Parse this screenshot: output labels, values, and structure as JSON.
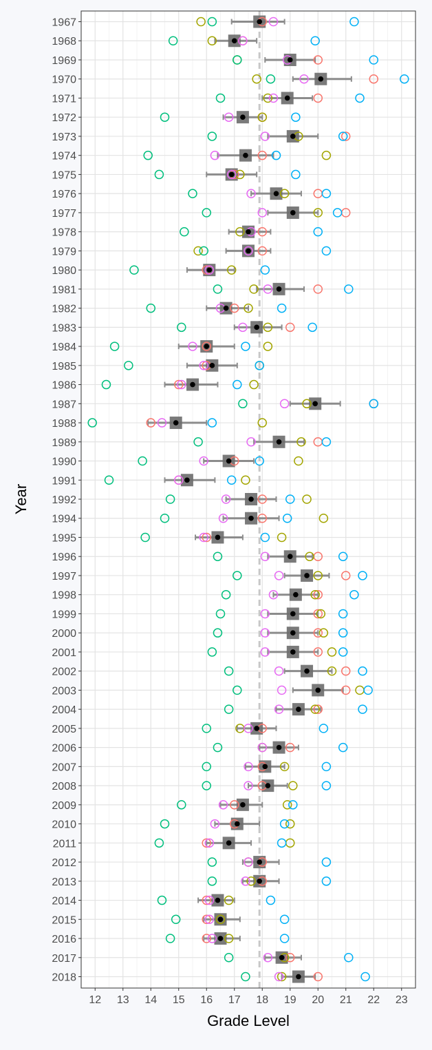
{
  "chart_data": {
    "type": "scatter",
    "title": "",
    "xlabel": "Grade Level",
    "ylabel": "Year",
    "xlim": [
      11.5,
      23.5
    ],
    "xticks": [
      12,
      13,
      14,
      15,
      16,
      17,
      18,
      19,
      20,
      21,
      22,
      23
    ],
    "grid": true,
    "reference_line_x": 17.9,
    "colors": {
      "mean": "#000000",
      "interval": "#8c8c8c",
      "mean_box": "#6b6b6b",
      "reference": "#c8c8c8",
      "series": [
        "#f8766d",
        "#a3a500",
        "#00bf7d",
        "#00b0f6",
        "#e76bf3"
      ]
    },
    "years": [
      "1967",
      "1968",
      "1969",
      "1970",
      "1971",
      "1972",
      "1973",
      "1974",
      "1975",
      "1976",
      "1977",
      "1978",
      "1979",
      "1980",
      "1981",
      "1982",
      "1983",
      "1984",
      "1985",
      "1986",
      "1987",
      "1988",
      "1989",
      "1990",
      "1991",
      "1992",
      "1994",
      "1995",
      "1996",
      "1997",
      "1998",
      "1999",
      "2000",
      "2001",
      "2002",
      "2003",
      "2004",
      "2005",
      "2006",
      "2007",
      "2008",
      "2009",
      "2010",
      "2011",
      "2012",
      "2013",
      "2014",
      "2015",
      "2016",
      "2017",
      "2018"
    ],
    "mean": [
      17.9,
      17.0,
      19.0,
      20.1,
      18.9,
      17.3,
      19.1,
      17.4,
      16.9,
      18.5,
      19.1,
      17.5,
      17.5,
      16.1,
      18.6,
      16.7,
      17.8,
      16.0,
      16.2,
      15.5,
      19.9,
      14.9,
      18.6,
      16.8,
      15.3,
      17.6,
      17.6,
      16.4,
      19.0,
      19.6,
      19.2,
      19.1,
      19.1,
      19.1,
      19.6,
      20.0,
      19.3,
      17.8,
      18.6,
      18.1,
      18.2,
      17.3,
      17.1,
      16.8,
      17.9,
      17.9,
      16.4,
      16.5,
      16.5,
      18.7,
      19.3
    ],
    "interval_low": [
      16.9,
      16.3,
      18.1,
      19.1,
      18.0,
      16.6,
      18.2,
      16.4,
      16.0,
      17.6,
      18.2,
      16.8,
      16.7,
      15.3,
      17.8,
      16.0,
      17.0,
      15.0,
      15.3,
      14.5,
      19.0,
      13.9,
      17.7,
      15.9,
      14.5,
      16.7,
      16.6,
      15.6,
      18.2,
      18.8,
      18.4,
      18.2,
      18.2,
      18.2,
      18.8,
      19.1,
      18.5,
      17.1,
      17.9,
      17.4,
      17.5,
      16.5,
      16.3,
      16.0,
      17.3,
      17.3,
      15.7,
      15.9,
      15.9,
      18.1,
      18.7
    ],
    "interval_high": [
      18.8,
      17.8,
      19.9,
      21.2,
      19.8,
      18.0,
      20.0,
      18.4,
      17.8,
      19.4,
      20.0,
      18.3,
      18.3,
      17.0,
      19.5,
      17.5,
      18.7,
      17.0,
      17.1,
      16.4,
      20.8,
      16.0,
      19.5,
      17.7,
      16.3,
      18.5,
      18.6,
      17.3,
      19.8,
      20.4,
      20.0,
      20.0,
      20.0,
      20.0,
      20.5,
      20.9,
      20.1,
      18.5,
      19.3,
      18.8,
      18.9,
      18.0,
      17.9,
      17.6,
      18.6,
      18.6,
      17.0,
      17.2,
      17.2,
      19.4,
      19.9
    ],
    "series": [
      {
        "values": [
          18.0,
          17.3,
          20.0,
          22.0,
          20.0,
          18.0,
          21.0,
          18.0,
          17.0,
          20.0,
          21.0,
          18.0,
          18.0,
          16.0,
          20.0,
          17.0,
          19.0,
          16.0,
          16.0,
          15.0,
          22.0,
          14.0,
          20.0,
          17.0,
          15.0,
          18.0,
          18.0,
          16.0,
          20.0,
          21.0,
          20.0,
          20.0,
          20.0,
          20.0,
          21.0,
          21.0,
          20.0,
          18.0,
          19.0,
          18.0,
          18.0,
          17.0,
          17.0,
          16.0,
          18.0,
          18.0,
          16.0,
          16.0,
          16.0,
          19.0,
          20.0
        ]
      },
      {
        "values": [
          15.8,
          16.2,
          17.1,
          17.8,
          18.2,
          18.0,
          19.3,
          20.3,
          17.2,
          18.8,
          20.0,
          17.2,
          15.7,
          16.9,
          17.7,
          17.5,
          18.2,
          18.2,
          17.9,
          17.7,
          19.6,
          18.0,
          19.4,
          19.3,
          17.4,
          19.6,
          20.2,
          18.7,
          19.7,
          20.0,
          19.9,
          20.1,
          20.2,
          20.5,
          20.5,
          21.5,
          19.9,
          17.2,
          18.0,
          18.8,
          19.1,
          18.9,
          19.0,
          19.0,
          17.5,
          17.6,
          16.8,
          16.5,
          16.8,
          18.8,
          18.7
        ]
      },
      {
        "values": [
          16.2,
          14.8,
          17.1,
          18.3,
          16.5,
          14.5,
          16.2,
          13.9,
          14.3,
          15.5,
          16.0,
          15.2,
          15.9,
          13.4,
          16.4,
          14.0,
          15.1,
          12.7,
          13.2,
          12.4,
          17.3,
          11.9,
          15.7,
          13.7,
          12.5,
          14.7,
          14.5,
          13.8,
          16.4,
          17.1,
          16.7,
          16.5,
          16.4,
          16.2,
          16.8,
          17.1,
          16.8,
          16.0,
          16.4,
          16.0,
          16.0,
          15.1,
          14.5,
          14.3,
          16.2,
          16.2,
          14.4,
          14.9,
          14.7,
          16.8,
          17.4
        ]
      },
      {
        "values": [
          21.3,
          19.9,
          22.0,
          23.1,
          21.5,
          19.2,
          20.9,
          18.5,
          19.2,
          20.3,
          20.7,
          20.0,
          20.3,
          18.1,
          21.1,
          18.7,
          19.8,
          17.4,
          17.9,
          17.1,
          22.0,
          16.2,
          20.3,
          17.9,
          16.9,
          19.0,
          18.9,
          18.1,
          20.9,
          21.6,
          21.3,
          20.9,
          20.9,
          20.9,
          21.6,
          21.8,
          21.6,
          20.2,
          20.9,
          20.3,
          20.3,
          19.1,
          18.8,
          18.7,
          20.3,
          20.3,
          18.3,
          18.8,
          18.8,
          21.1,
          21.7
        ]
      },
      {
        "values": [
          18.4,
          17.3,
          18.9,
          19.5,
          18.4,
          16.8,
          18.1,
          16.3,
          16.9,
          17.6,
          18.0,
          17.6,
          17.5,
          16.1,
          18.2,
          16.5,
          17.3,
          15.5,
          15.9,
          15.1,
          18.8,
          14.4,
          17.6,
          15.9,
          15.0,
          16.7,
          16.6,
          15.9,
          18.1,
          18.6,
          18.4,
          18.1,
          18.1,
          18.1,
          18.6,
          18.7,
          18.6,
          17.5,
          18.0,
          17.5,
          17.5,
          16.6,
          16.3,
          16.1,
          17.5,
          17.4,
          16.1,
          16.1,
          16.2,
          18.2,
          18.6
        ]
      }
    ]
  }
}
